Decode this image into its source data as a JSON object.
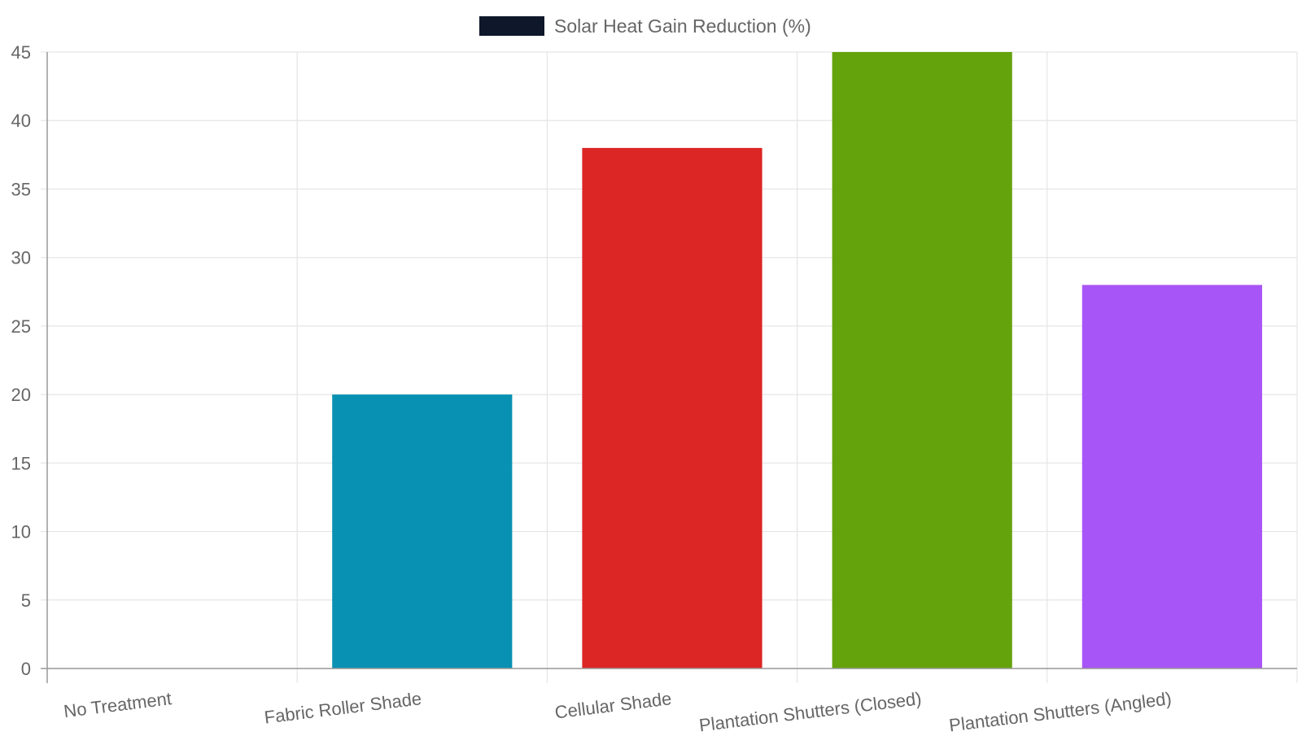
{
  "chart_data": {
    "type": "bar",
    "categories": [
      "No Treatment",
      "Fabric Roller Shade",
      "Cellular Shade",
      "Plantation Shutters (Closed)",
      "Plantation Shutters (Angled)"
    ],
    "series": [
      {
        "name": "Solar Heat Gain Reduction (%)",
        "values": [
          0,
          20,
          38,
          45,
          28
        ],
        "colors": [
          "#0f172a",
          "#0891b2",
          "#dc2626",
          "#65a30d",
          "#a855f7"
        ]
      }
    ],
    "legend": {
      "label": "Solar Heat Gain Reduction (%)",
      "swatch_color": "#0f172a",
      "position": "top"
    },
    "ylim": [
      0,
      45
    ],
    "yticks": [
      "0",
      "5",
      "10",
      "15",
      "20",
      "25",
      "30",
      "35",
      "40",
      "45"
    ],
    "grid": true
  }
}
